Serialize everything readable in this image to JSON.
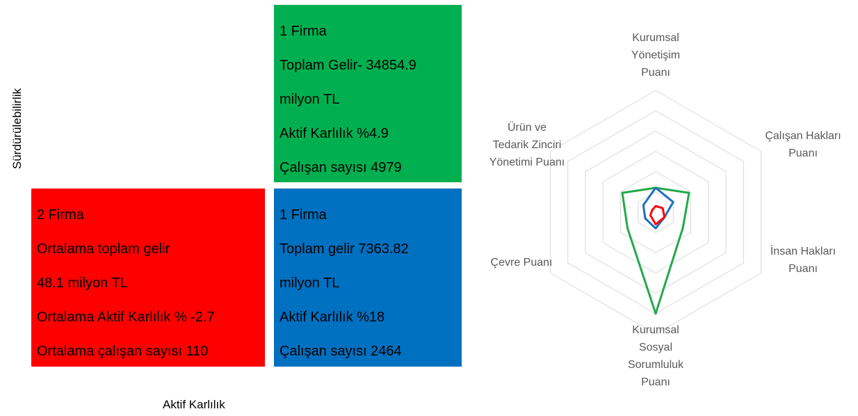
{
  "quadrants": [
    {
      "color": "#00b050",
      "lines": [
        "1 Firma",
        "Toplam Gelir- 34854.9",
        "milyon TL",
        "Aktif Karlılık  %4.9",
        "Çalışan sayısı 4979"
      ]
    },
    {
      "color": "#ff0000",
      "lines": [
        "2 Firma",
        "Ortalama toplam gelir",
        "48.1 milyon TL",
        "Ortalama Aktif Karlılık  % -2.7",
        "Ortalama çalışan sayısı 110"
      ]
    },
    {
      "color": "#0070c0",
      "lines": [
        "1 Firma",
        "Toplam gelir 7363.82",
        "milyon TL",
        "Aktif Karlılık  %18",
        "Çalışan sayısı 2464"
      ]
    }
  ],
  "y_axis_label": "Sürdürülebilirlik",
  "x_axis_label": "Aktif Karlılık",
  "chart_data": {
    "type": "radar",
    "categories": [
      [
        "Kurumsal",
        "Yönetişim",
        "Puanı"
      ],
      [
        "Çalışan Hakları",
        "Puanı"
      ],
      [
        "İnsan Hakları",
        "Puanı"
      ],
      [
        "Kurumsal",
        "Sosyal",
        "Sorumluluk",
        "Puanı"
      ],
      [
        "Çevre Puanı"
      ],
      [
        "Ürün ve",
        "Tedarik Zinciri",
        "Yönetimi Puanı"
      ]
    ],
    "series": [
      {
        "color": "#22a94a",
        "values": [
          1.2,
          1.9,
          1.55,
          5,
          1.6,
          1.9
        ]
      },
      {
        "color": "#1e6fc0",
        "values": [
          1.2,
          1.0,
          0.5,
          0.8,
          0.6,
          0.7
        ]
      },
      {
        "color": "#ff0000",
        "values": [
          0.3,
          0.4,
          0.5,
          0.6,
          0.3,
          0.2
        ]
      }
    ],
    "rlim": [
      0,
      6
    ],
    "rticks": [
      1,
      2,
      3,
      4,
      5,
      6
    ],
    "grid": true
  }
}
